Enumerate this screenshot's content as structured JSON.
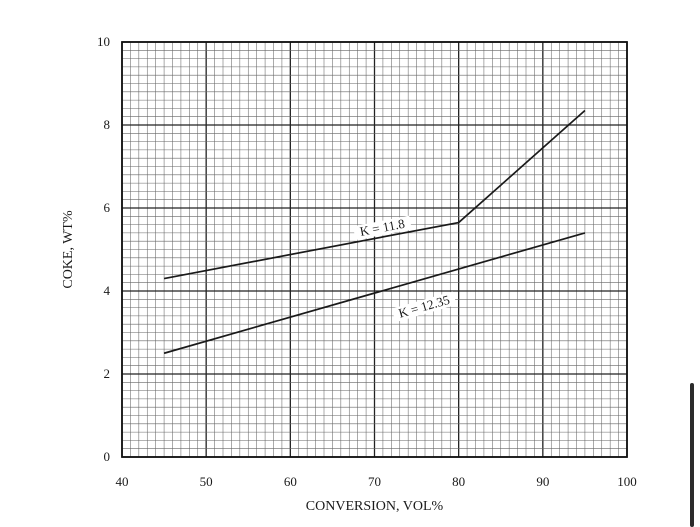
{
  "chart_data": {
    "type": "line",
    "title": "",
    "xlabel": "CONVERSION, VOL%",
    "ylabel": "COKE, WT%",
    "xlim": [
      40,
      100
    ],
    "ylim": [
      0,
      10
    ],
    "xticks": [
      "40",
      "50",
      "60",
      "70",
      "80",
      "90",
      "100"
    ],
    "yticks": [
      "0",
      "2",
      "4",
      "6",
      "8",
      "10"
    ],
    "grid": true,
    "legend": "none",
    "series": [
      {
        "name": "K = 11.8",
        "x": [
          45,
          80,
          95
        ],
        "y": [
          4.3,
          5.65,
          8.35
        ],
        "label_at": [
          71,
          5.45
        ]
      },
      {
        "name": "K = 12.35",
        "x": [
          45,
          95
        ],
        "y": [
          2.5,
          5.4
        ],
        "label_at": [
          76,
          3.55
        ]
      }
    ]
  },
  "ui": {
    "scrollbar": "vertical-scrollbar"
  }
}
